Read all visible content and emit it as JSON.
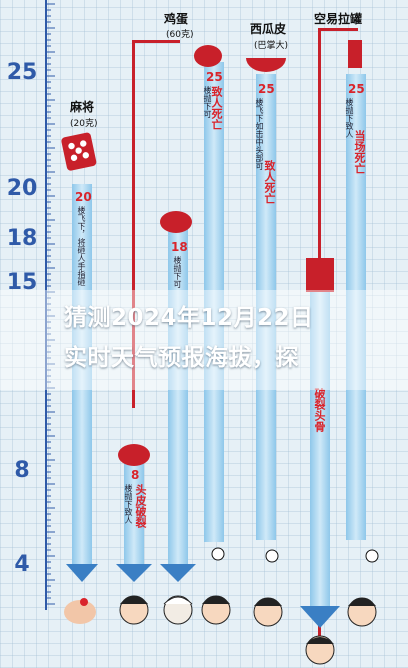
{
  "floors": [
    "25",
    "20",
    "18",
    "15",
    "8",
    "4"
  ],
  "items": [
    {
      "name": "麻将",
      "weight": "(20克)",
      "floor": "20",
      "desc": "楼飞下，将砸人手指砸",
      "result": ""
    },
    {
      "name": "鸡蛋",
      "weight": "(60克)",
      "floor": "18",
      "desc": "楼抛下可",
      "result": ""
    },
    {
      "name": "西瓜皮",
      "weight": "(巴掌大)",
      "floor": "25",
      "desc": "楼飞下如击中头部可",
      "result": "致人死亡"
    },
    {
      "name": "空易拉罐",
      "weight": "",
      "floor": "25",
      "desc": "楼抛下致人",
      "result": "当场死亡"
    }
  ],
  "egg_col": {
    "floor25": "25",
    "desc25": "楼抛下可",
    "result25": "致人死亡",
    "floor8": "8",
    "desc8": "楼抛下致人",
    "result8": "头皮破裂"
  },
  "can_lower": {
    "result": "破裂头骨"
  },
  "banner": {
    "line1": "猜测2024年12月22日",
    "line2": "实时天气预报海拔，探"
  },
  "colors": {
    "red": "#d9242b",
    "blue": "#2f5aa8",
    "arrow": "#3a7fc4",
    "tube": "#a9d3ee"
  }
}
